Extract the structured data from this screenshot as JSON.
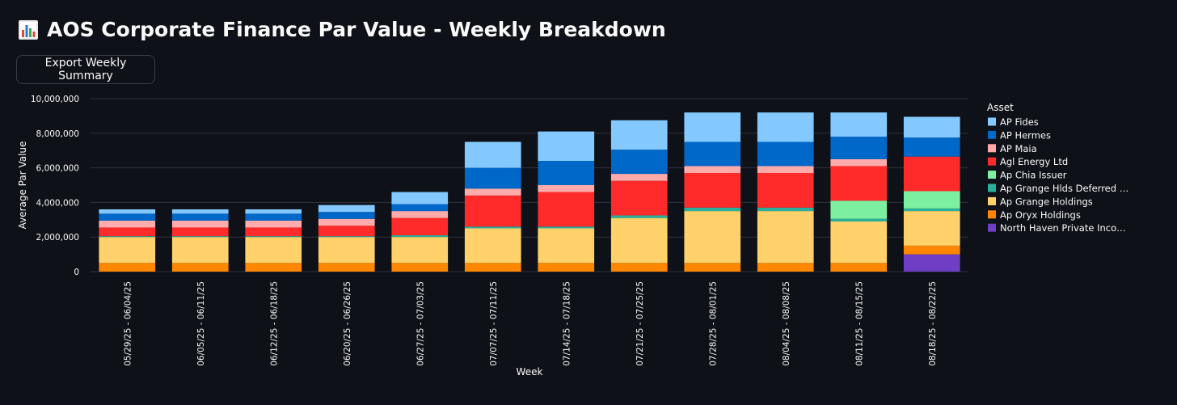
{
  "page": {
    "title": "AOS Corporate Finance Par Value - Weekly Breakdown",
    "title_icon": "bar-chart-icon",
    "export_button_label": "Export Weekly Summary"
  },
  "chart_data": {
    "type": "bar",
    "stacked": true,
    "title": "",
    "xlabel": "Week",
    "ylabel": "Average Par Value",
    "ylim": [
      0,
      10000000
    ],
    "yticks": [
      0,
      2000000,
      4000000,
      6000000,
      8000000,
      10000000
    ],
    "ytick_labels": [
      "0",
      "2,000,000",
      "4,000,000",
      "6,000,000",
      "8,000,000",
      "10,000,000"
    ],
    "legend_title": "Asset",
    "legend_position": "right",
    "categories": [
      "05/29/25 - 06/04/25",
      "06/05/25 - 06/11/25",
      "06/12/25 - 06/18/25",
      "06/20/25 - 06/26/25",
      "06/27/25 - 07/03/25",
      "07/07/25 - 07/11/25",
      "07/14/25 - 07/18/25",
      "07/21/25 - 07/25/25",
      "07/28/25 - 08/01/25",
      "08/04/25 - 08/08/25",
      "08/11/25 - 08/15/25",
      "08/18/25 - 08/22/25"
    ],
    "series": [
      {
        "name": "North Haven Private Inco…",
        "color": "#6e3fc4",
        "values": [
          0,
          0,
          0,
          0,
          0,
          0,
          0,
          0,
          0,
          0,
          0,
          1000000
        ]
      },
      {
        "name": "Ap Oryx Holdings",
        "color": "#ff8700",
        "values": [
          500000,
          500000,
          500000,
          500000,
          500000,
          500000,
          500000,
          500000,
          500000,
          500000,
          500000,
          500000
        ]
      },
      {
        "name": "Ap Grange Holdings",
        "color": "#ffd16a",
        "values": [
          1500000,
          1500000,
          1500000,
          1500000,
          1500000,
          2000000,
          2000000,
          2600000,
          3000000,
          3000000,
          2400000,
          2000000
        ]
      },
      {
        "name": "Ap Grange Hlds Deferred …",
        "color": "#29b09d",
        "values": [
          50000,
          50000,
          50000,
          50000,
          100000,
          100000,
          100000,
          150000,
          200000,
          200000,
          150000,
          150000
        ]
      },
      {
        "name": "Ap Chia Issuer",
        "color": "#7defa1",
        "values": [
          0,
          0,
          0,
          0,
          0,
          0,
          0,
          0,
          0,
          0,
          1050000,
          1000000
        ]
      },
      {
        "name": "Agl Energy Ltd",
        "color": "#ff2b2b",
        "values": [
          500000,
          500000,
          500000,
          600000,
          1000000,
          1800000,
          2000000,
          2000000,
          2000000,
          2000000,
          2000000,
          2000000
        ]
      },
      {
        "name": "AP Maia",
        "color": "#ffabab",
        "values": [
          400000,
          400000,
          400000,
          400000,
          400000,
          400000,
          400000,
          400000,
          400000,
          400000,
          400000,
          0
        ]
      },
      {
        "name": "AP Hermes",
        "color": "#0068c9",
        "values": [
          400000,
          400000,
          400000,
          400000,
          400000,
          1200000,
          1400000,
          1400000,
          1400000,
          1400000,
          1300000,
          1100000
        ]
      },
      {
        "name": "AP Fides",
        "color": "#83c9ff",
        "values": [
          250000,
          250000,
          250000,
          400000,
          700000,
          1500000,
          1700000,
          1700000,
          1700000,
          1700000,
          1400000,
          1200000
        ]
      }
    ],
    "legend_order": [
      "AP Fides",
      "AP Hermes",
      "AP Maia",
      "Agl Energy Ltd",
      "Ap Chia Issuer",
      "Ap Grange Hlds Deferred …",
      "Ap Grange Holdings",
      "Ap Oryx Holdings",
      "North Haven Private Inco…"
    ]
  }
}
